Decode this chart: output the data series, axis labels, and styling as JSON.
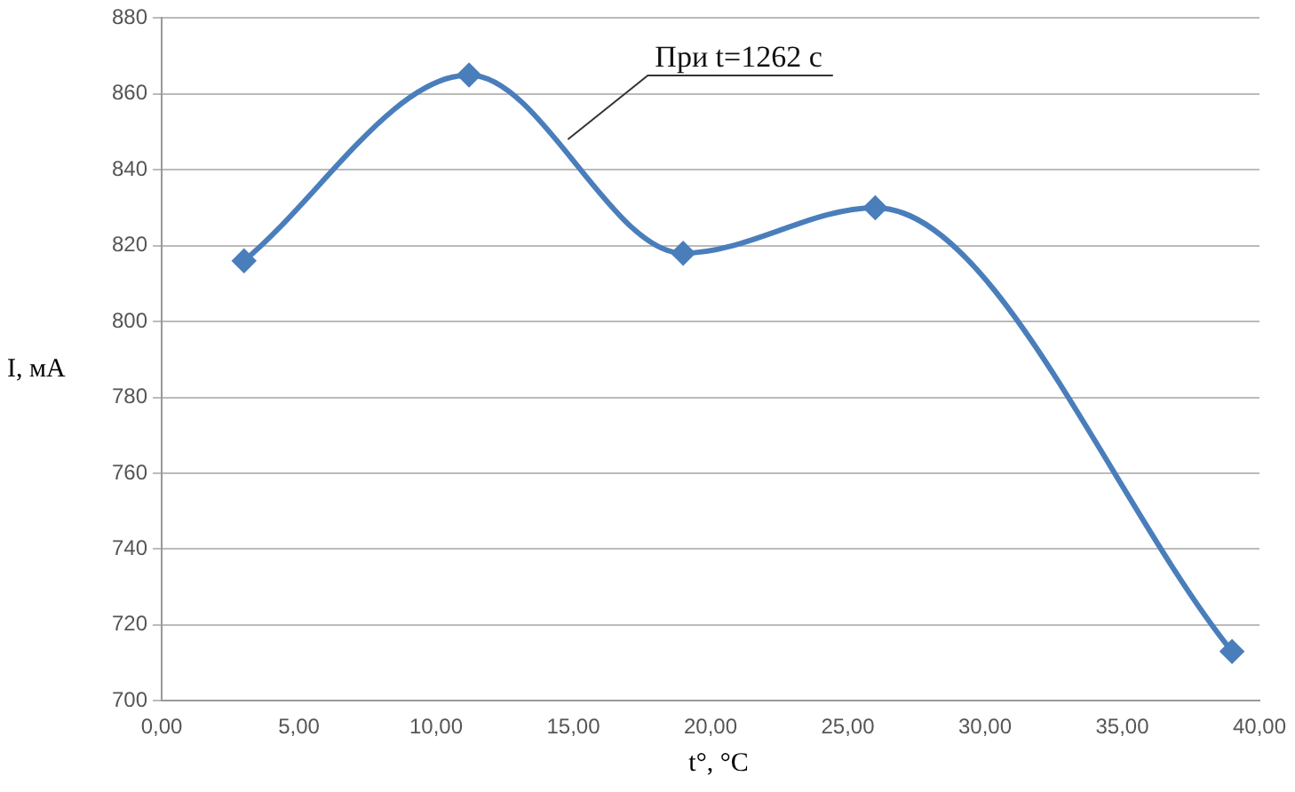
{
  "chart_data": {
    "type": "line",
    "xlabel": "t°, °C",
    "ylabel": "I, мА",
    "x": [
      3,
      11.2,
      19,
      26,
      39
    ],
    "series": [
      {
        "color": "#4a7ebb",
        "values": [
          816,
          865,
          818,
          830,
          713
        ]
      }
    ],
    "xlim": [
      0,
      40
    ],
    "xticks": [
      {
        "value": 0,
        "label": "0,00"
      },
      {
        "value": 5,
        "label": "5,00"
      },
      {
        "value": 10,
        "label": "10,00"
      },
      {
        "value": 15,
        "label": "15,00"
      },
      {
        "value": 20,
        "label": "20,00"
      },
      {
        "value": 25,
        "label": "25,00"
      },
      {
        "value": 30,
        "label": "30,00"
      },
      {
        "value": 35,
        "label": "35,00"
      },
      {
        "value": 40,
        "label": "40,00"
      }
    ],
    "ylim": [
      700,
      880
    ],
    "yticks": [
      700,
      720,
      740,
      760,
      780,
      800,
      820,
      840,
      860,
      880
    ],
    "grid": "y",
    "legend": false,
    "marker": "diamond",
    "line_style": "solid",
    "annotations": [
      {
        "text": "При t=1262 с",
        "x": 14.8,
        "y": 848
      }
    ]
  }
}
